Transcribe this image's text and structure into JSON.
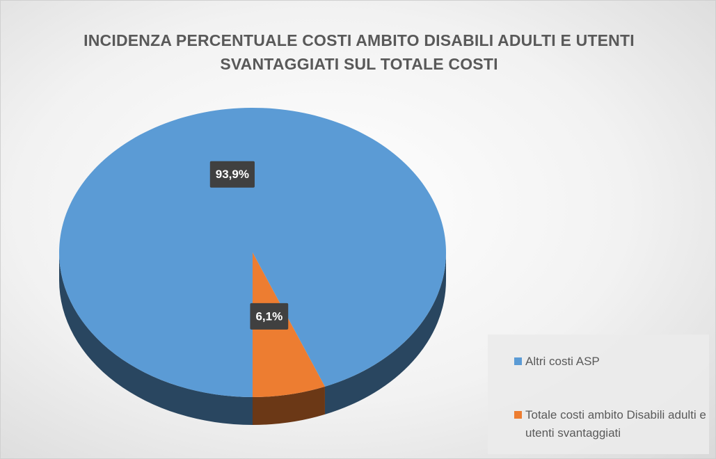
{
  "chart_data": {
    "type": "pie",
    "title": "INCIDENZA PERCENTUALE COSTI AMBITO DISABILI ADULTI E UTENTI SVANTAGGIATI SUL TOTALE COSTI",
    "categories": [
      "Altri costi ASP",
      "Totale costi ambito Disabili adulti e utenti svantaggiati"
    ],
    "values": [
      93.9,
      6.1
    ],
    "value_labels": [
      "93,9%",
      "6,1%"
    ],
    "colors": [
      "#5b9bd5",
      "#ed7d31"
    ],
    "legend": "bottom-right"
  }
}
